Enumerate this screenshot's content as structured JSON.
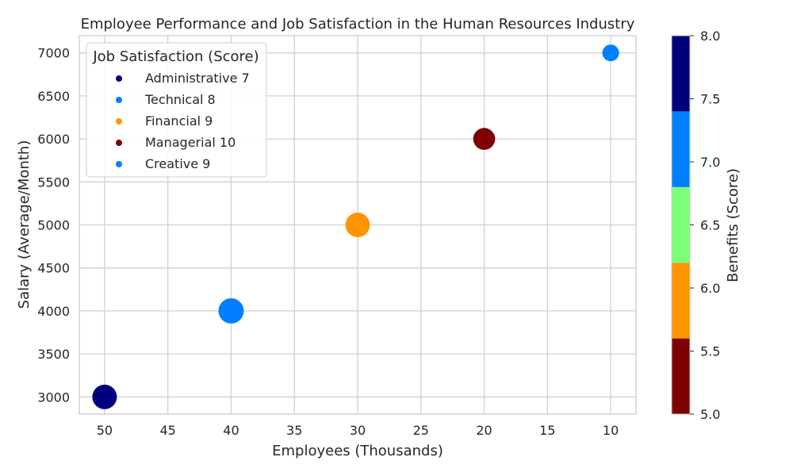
{
  "chart_data": {
    "type": "scatter",
    "title": "Employee Performance and Job Satisfaction in the Human Resources Industry",
    "xlabel": "Employees (Thousands)",
    "ylabel": "Salary (Average/Month)",
    "xlim": [
      52,
      8
    ],
    "ylim": [
      2800,
      7200
    ],
    "x_ticks": [
      50,
      45,
      40,
      35,
      30,
      25,
      20,
      15,
      10
    ],
    "y_ticks": [
      3000,
      3500,
      4000,
      4500,
      5000,
      5500,
      6000,
      6500,
      7000
    ],
    "legend_title": "Job Satisfaction (Score)",
    "legend_position": "top-left",
    "points": [
      {
        "label": "Administrative 7",
        "category": "Administrative",
        "employees": 50,
        "salary": 3000,
        "job_satisfaction": 7,
        "benefits": 8,
        "color": "#00007f"
      },
      {
        "label": "Technical 8",
        "category": "Technical",
        "employees": 40,
        "salary": 4000,
        "job_satisfaction": 8,
        "benefits": 7,
        "color": "#0080ff"
      },
      {
        "label": "Financial 9",
        "category": "Financial",
        "employees": 30,
        "salary": 5000,
        "job_satisfaction": 9,
        "benefits": 6,
        "color": "#ff9400"
      },
      {
        "label": "Managerial 10",
        "category": "Managerial",
        "employees": 20,
        "salary": 6000,
        "job_satisfaction": 10,
        "benefits": 5,
        "color": "#7f0000"
      },
      {
        "label": "Creative 9",
        "category": "Creative",
        "employees": 10,
        "salary": 7000,
        "job_satisfaction": 9,
        "benefits": 7,
        "color": "#0080ff"
      }
    ],
    "colorbar": {
      "label": "Benefits (Score)",
      "range": [
        5.0,
        8.0
      ],
      "ticks": [
        "5.0",
        "5.5",
        "6.0",
        "6.5",
        "7.0",
        "7.5",
        "8.0"
      ],
      "segments": [
        {
          "from": 5.0,
          "to": 5.6,
          "color": "#7f0000"
        },
        {
          "from": 5.6,
          "to": 6.2,
          "color": "#ff9400"
        },
        {
          "from": 6.2,
          "to": 6.8,
          "color": "#7dff7a"
        },
        {
          "from": 6.8,
          "to": 7.4,
          "color": "#0080ff"
        },
        {
          "from": 7.4,
          "to": 8.0,
          "color": "#00007f"
        }
      ]
    }
  }
}
